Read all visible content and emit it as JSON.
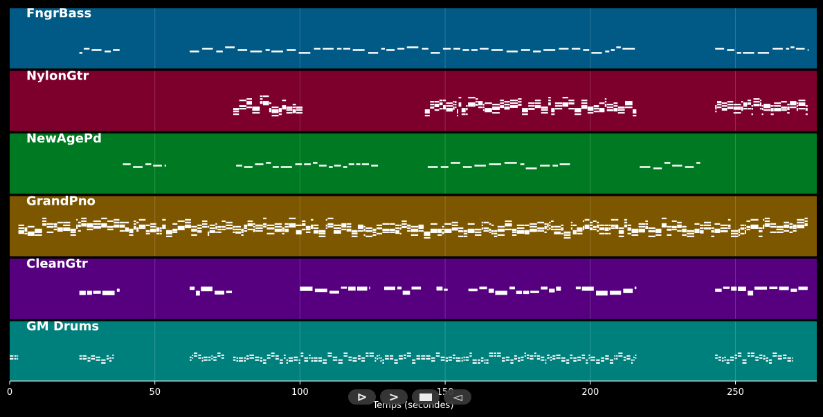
{
  "chart_data": {
    "type": "piano-roll",
    "xlabel": "Temps (secondes)",
    "xlim": [
      0,
      278
    ],
    "xticks": [
      0,
      50,
      100,
      150,
      200,
      250
    ],
    "tracks": [
      {
        "name": "FngrBass",
        "color": "#005a85",
        "segments": [
          [
            24,
            38
          ],
          [
            62,
            216
          ],
          [
            243,
            275
          ]
        ],
        "density": 0.55,
        "style": "line",
        "lane": 0.68
      },
      {
        "name": "NylonGtr",
        "color": "#7d002c",
        "segments": [
          [
            77,
            101
          ],
          [
            143,
            216
          ],
          [
            243,
            275
          ]
        ],
        "density": 0.9,
        "style": "dense",
        "lane": 0.57
      },
      {
        "name": "NewAgePd",
        "color": "#007a22",
        "segments": [
          [
            39,
            54
          ],
          [
            78,
            127
          ],
          [
            144,
            194
          ],
          [
            217,
            238
          ]
        ],
        "density": 0.6,
        "style": "line",
        "lane": 0.52
      },
      {
        "name": "GrandPno",
        "color": "#7d5600",
        "segments": [
          [
            3,
            275
          ]
        ],
        "density": 1.0,
        "style": "dense",
        "lane": 0.52
      },
      {
        "name": "CleanGtr",
        "color": "#560080",
        "segments": [
          [
            24,
            38
          ],
          [
            62,
            77
          ],
          [
            100,
            124
          ],
          [
            129,
            142
          ],
          [
            147,
            151
          ],
          [
            158,
            190
          ],
          [
            195,
            216
          ],
          [
            243,
            275
          ]
        ],
        "density": 0.75,
        "style": "blocks",
        "lane": 0.5
      },
      {
        "name": "GM Drums",
        "color": "#00807d",
        "segments": [
          [
            0,
            3
          ],
          [
            24,
            36
          ],
          [
            62,
            74
          ],
          [
            77,
            216
          ],
          [
            243,
            270
          ]
        ],
        "density": 0.8,
        "style": "drums",
        "lane": 0.6
      }
    ]
  },
  "controls": [
    {
      "name": "play-from-start-button",
      "glyph": "⊳"
    },
    {
      "name": "play-button",
      "glyph": ">"
    },
    {
      "name": "stop-button",
      "glyph": ""
    },
    {
      "name": "rewind-button",
      "glyph": "◅"
    }
  ]
}
